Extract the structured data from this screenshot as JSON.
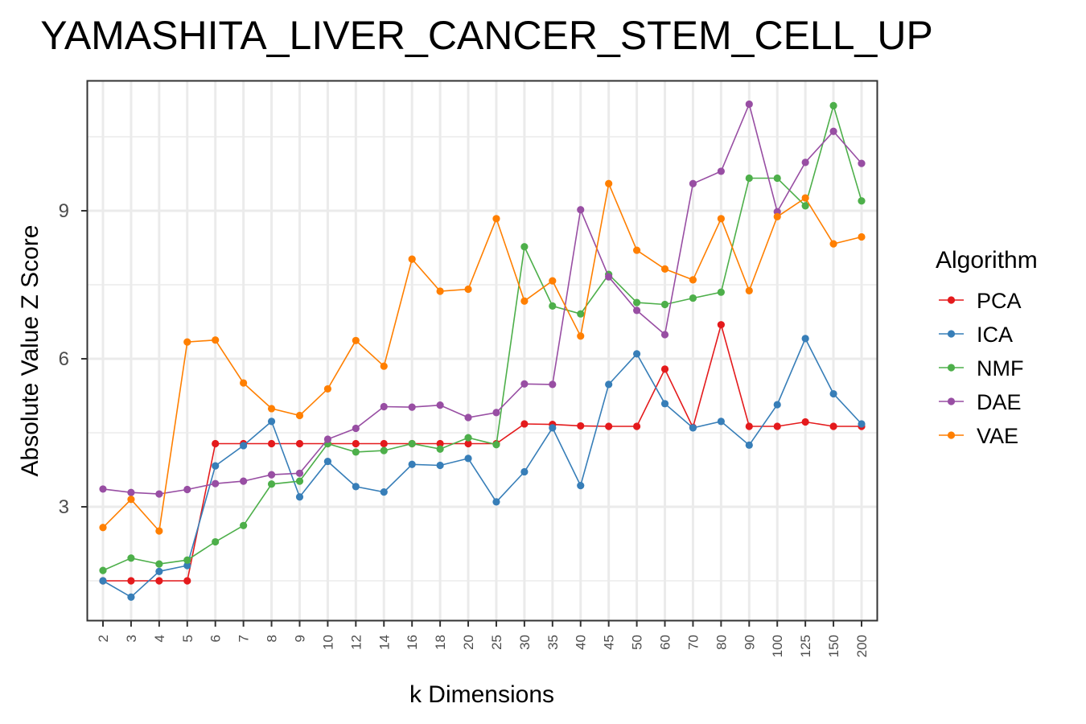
{
  "chart_data": {
    "type": "line",
    "title": "YAMASHITA_LIVER_CANCER_STEM_CELL_UP",
    "xlabel": "k Dimensions",
    "ylabel": "Absolute Value Z Score",
    "categories": [
      "2",
      "3",
      "4",
      "5",
      "6",
      "7",
      "8",
      "9",
      "10",
      "12",
      "14",
      "16",
      "18",
      "20",
      "25",
      "30",
      "35",
      "40",
      "45",
      "50",
      "60",
      "70",
      "80",
      "90",
      "100",
      "125",
      "150",
      "200"
    ],
    "yticks": [
      3,
      6,
      9
    ],
    "ylim": [
      0.6,
      11.4
    ],
    "grid": true,
    "legend_title": "Algorithm",
    "legend_position": "right",
    "series": [
      {
        "name": "PCA",
        "color": "#e41a1c",
        "values": [
          1.5,
          1.5,
          1.5,
          1.5,
          4.28,
          4.28,
          4.28,
          4.28,
          4.28,
          4.28,
          4.28,
          4.28,
          4.28,
          4.28,
          4.28,
          4.68,
          4.67,
          4.64,
          4.63,
          4.63,
          5.79,
          4.61,
          6.69,
          4.63,
          4.63,
          4.72,
          4.63,
          4.63
        ]
      },
      {
        "name": "ICA",
        "color": "#377eb8",
        "values": [
          1.5,
          1.17,
          1.69,
          1.81,
          3.83,
          4.24,
          4.73,
          3.2,
          3.92,
          3.41,
          3.3,
          3.86,
          3.84,
          3.98,
          3.1,
          3.71,
          4.6,
          3.43,
          5.48,
          6.1,
          5.09,
          4.6,
          4.73,
          4.25,
          5.07,
          6.41,
          5.29,
          4.68
        ]
      },
      {
        "name": "NMF",
        "color": "#4daf4a",
        "values": [
          1.71,
          1.96,
          1.84,
          1.92,
          2.29,
          2.62,
          3.46,
          3.52,
          4.28,
          4.11,
          4.14,
          4.28,
          4.17,
          4.4,
          4.26,
          8.27,
          7.07,
          6.91,
          7.71,
          7.14,
          7.1,
          7.23,
          7.35,
          9.66,
          9.66,
          9.1,
          11.13,
          9.2
        ]
      },
      {
        "name": "DAE",
        "color": "#984ea3",
        "values": [
          3.36,
          3.29,
          3.26,
          3.35,
          3.47,
          3.52,
          3.65,
          3.68,
          4.37,
          4.59,
          5.03,
          5.02,
          5.06,
          4.81,
          4.91,
          5.49,
          5.48,
          9.02,
          7.66,
          6.98,
          6.49,
          9.55,
          9.8,
          11.16,
          8.98,
          9.98,
          10.61,
          9.96
        ]
      },
      {
        "name": "VAE",
        "color": "#ff7f00",
        "values": [
          2.58,
          3.15,
          2.51,
          6.34,
          6.38,
          5.51,
          4.99,
          4.85,
          5.39,
          6.37,
          5.85,
          8.02,
          7.37,
          7.41,
          8.84,
          7.17,
          7.58,
          6.46,
          9.55,
          8.2,
          7.82,
          7.6,
          8.84,
          7.38,
          8.88,
          9.26,
          8.33,
          8.47
        ]
      }
    ]
  }
}
